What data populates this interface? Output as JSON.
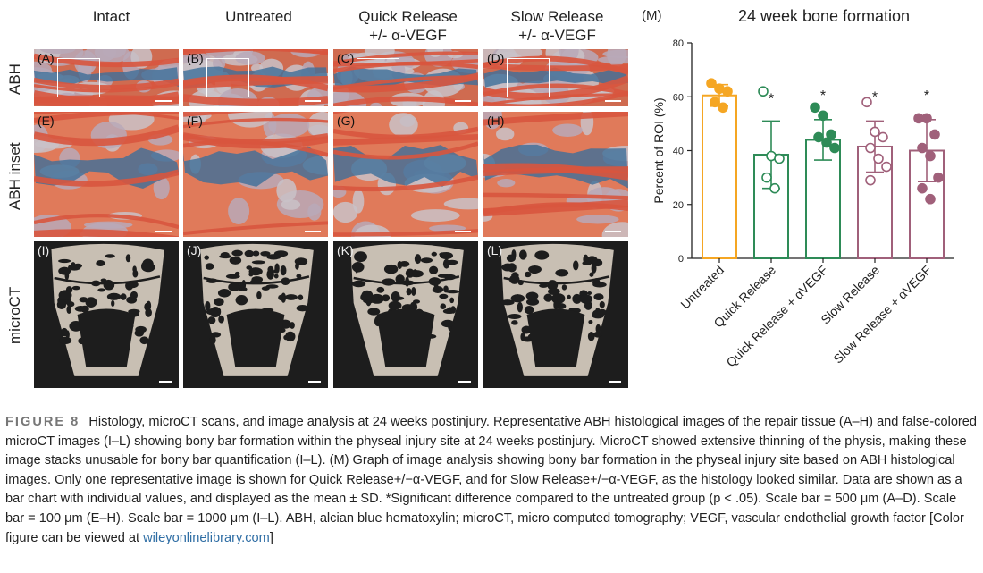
{
  "columns": [
    "Intact",
    "Untreated",
    "Quick Release\n+/- α-VEGF",
    "Slow Release\n+/- α-VEGF"
  ],
  "rows": [
    "ABH",
    "ABH inset",
    "microCT"
  ],
  "panel_labels": [
    "(A)",
    "(B)",
    "(C)",
    "(D)",
    "(E)",
    "(F)",
    "(G)",
    "(H)",
    "(I)",
    "(J)",
    "(K)",
    "(L)"
  ],
  "colors": {
    "untreated": "#f5a623",
    "quick": "#2e8b57",
    "slow": "#a0607a",
    "histo_red": "#d8553e",
    "histo_blue": "#3d6f9a",
    "ct_bg": "#1d1d1d",
    "ct_bone": "#c8bfb3"
  },
  "chart_data": {
    "type": "bar",
    "panel_label": "(M)",
    "title": "24 week bone formation",
    "ylabel": "Percent of ROI (%)",
    "xlabel": "",
    "ylim": [
      0,
      80
    ],
    "yticks": [
      0,
      20,
      40,
      60,
      80
    ],
    "categories": [
      "Untreated",
      "Quick Release",
      "Quick Release + αVEGF",
      "Slow Release",
      "Slow Release + αVEGF"
    ],
    "means": [
      60.5,
      38.5,
      44,
      41.5,
      40
    ],
    "sd": [
      4,
      12.5,
      7.5,
      9.5,
      11.5
    ],
    "significant": [
      false,
      true,
      true,
      true,
      true
    ],
    "significance_marker": "*",
    "points": [
      [
        65,
        63,
        62,
        58,
        56
      ],
      [
        62,
        38,
        37,
        30,
        26
      ],
      [
        56,
        53,
        46,
        45,
        43,
        41
      ],
      [
        58,
        47,
        45,
        41,
        37,
        34,
        29
      ],
      [
        52,
        52,
        46,
        41,
        38,
        30,
        26,
        22
      ]
    ],
    "hollow": [
      false,
      true,
      false,
      true,
      false
    ]
  },
  "caption": {
    "fig_label": "FIGURE 8",
    "text": "Histology, microCT scans, and image analysis at 24 weeks postinjury. Representative ABH histological images of the repair tissue (A–H) and false-colored microCT images (I–L) showing bony bar formation within the physeal injury site at 24 weeks postinjury. MicroCT showed extensive thinning of the physis, making these image stacks unusable for bony bar quantification (I–L). (M) Graph of image analysis showing bony bar formation in the physeal injury site based on ABH histological images. Only one representative image is shown for Quick Release+/−α-VEGF, and for Slow Release+/−α-VEGF, as the histology looked similar. Data are shown as a bar chart with individual values, and displayed as the mean ± SD. *Significant difference compared to the untreated group (p < .05). Scale bar = 500 μm (A–D). Scale bar = 100 μm (E–H). Scale bar = 1000 μm (I–L). ABH, alcian blue hematoxylin; microCT, micro computed tomography; VEGF, vascular endothelial growth factor [Color figure can be viewed at ",
    "link": "wileyonlinelibrary.com",
    "end": "]"
  }
}
